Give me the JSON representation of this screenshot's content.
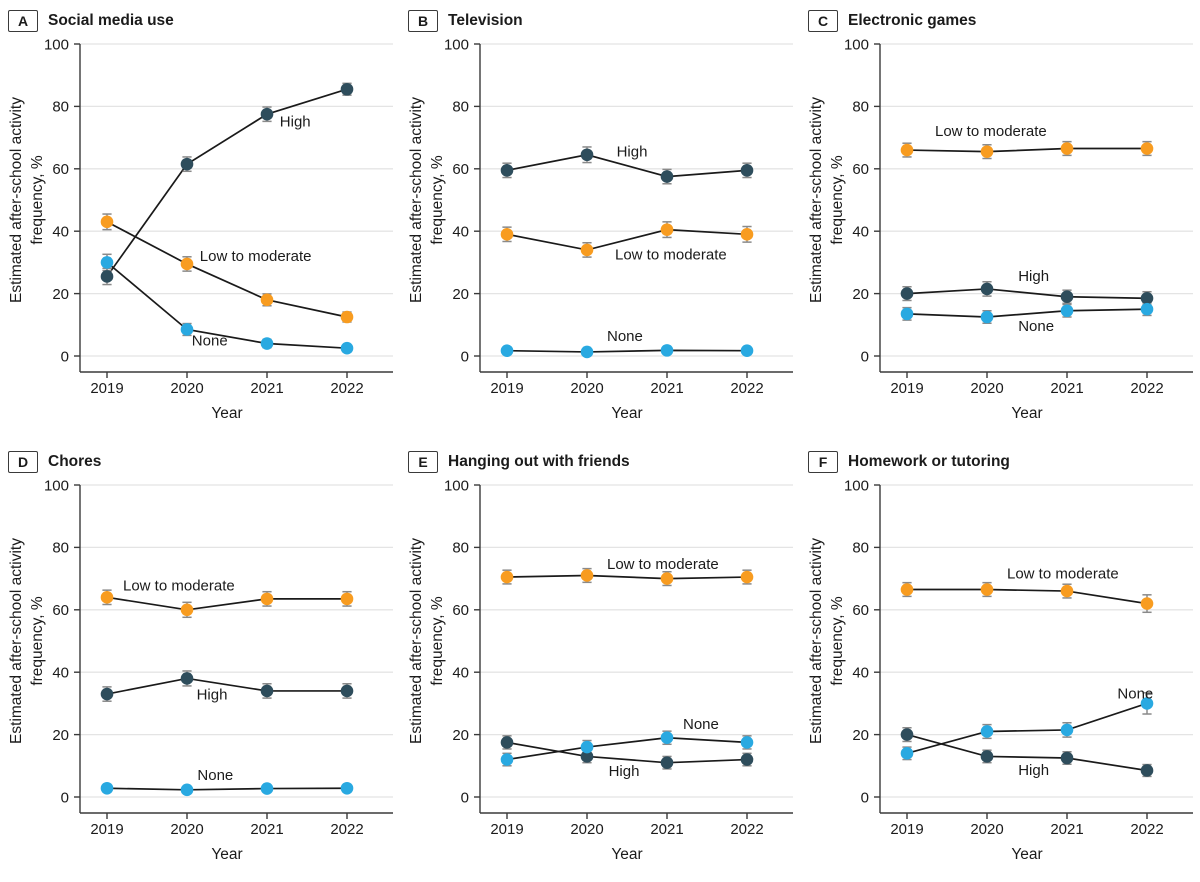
{
  "colors": {
    "high": "#2E4D5C",
    "low_to_moderate": "#F89C20",
    "none": "#29A9E1",
    "trend_line": "#1A1A1A",
    "error_bar": "#8A8A8A",
    "gridline": "#E4E4E4",
    "axis": "#3A3A3A",
    "text": "#1B1B1B"
  },
  "chart_data": [
    {
      "id": "A",
      "title": "Social media use",
      "type": "line",
      "x": [
        2019,
        2020,
        2021,
        2022
      ],
      "xlabel": "Year",
      "ylabel": "Estimated after-school activity frequency, %",
      "ylabel_lines": [
        "Estimated after-school activity",
        "frequency, %"
      ],
      "ylim": [
        0,
        100
      ],
      "yticks": [
        0,
        20,
        40,
        60,
        80,
        100
      ],
      "grid": true,
      "legend": "inline-labels",
      "series": [
        {
          "name": "High",
          "color_key": "high",
          "values": [
            25.5,
            61.5,
            77.5,
            85.5
          ],
          "errors": [
            2.6,
            2.3,
            2.3,
            1.9
          ],
          "label": {
            "x": 2.16,
            "y": 73.5
          }
        },
        {
          "name": "Low to moderate",
          "color_key": "low_to_moderate",
          "values": [
            43,
            29.5,
            18,
            12.5
          ],
          "errors": [
            2.5,
            2.3,
            1.9,
            1.6
          ],
          "label": {
            "x": 1.16,
            "y": 30.5
          }
        },
        {
          "name": "None",
          "color_key": "none",
          "values": [
            30,
            8.5,
            4,
            2.5
          ],
          "errors": [
            2.6,
            1.9,
            1.3,
            1.1
          ],
          "label": {
            "x": 1.06,
            "y": 3.4
          }
        }
      ]
    },
    {
      "id": "B",
      "title": "Television",
      "type": "line",
      "x": [
        2019,
        2020,
        2021,
        2022
      ],
      "xlabel": "Year",
      "ylabel": "Estimated after-school activity frequency, %",
      "ylabel_lines": [
        "Estimated after-school activity",
        "frequency, %"
      ],
      "ylim": [
        0,
        100
      ],
      "yticks": [
        0,
        20,
        40,
        60,
        80,
        100
      ],
      "grid": true,
      "legend": "inline-labels",
      "series": [
        {
          "name": "High",
          "color_key": "high",
          "values": [
            59.5,
            64.5,
            57.5,
            59.5
          ],
          "errors": [
            2.3,
            2.5,
            2.3,
            2.3
          ],
          "label": {
            "x": 1.37,
            "y": 64
          }
        },
        {
          "name": "Low to moderate",
          "color_key": "low_to_moderate",
          "values": [
            39,
            34,
            40.5,
            39
          ],
          "errors": [
            2.3,
            2.3,
            2.5,
            2.5
          ],
          "label": {
            "x": 1.35,
            "y": 31
          }
        },
        {
          "name": "None",
          "color_key": "none",
          "values": [
            1.7,
            1.3,
            1.8,
            1.7
          ],
          "errors": [
            0.8,
            0.7,
            0.8,
            0.8
          ],
          "label": {
            "x": 1.25,
            "y": 4.8
          }
        }
      ]
    },
    {
      "id": "C",
      "title": "Electronic games",
      "type": "line",
      "x": [
        2019,
        2020,
        2021,
        2022
      ],
      "xlabel": "Year",
      "ylabel": "Estimated after-school activity frequency, %",
      "ylabel_lines": [
        "Estimated after-school activity",
        "frequency, %"
      ],
      "ylim": [
        0,
        100
      ],
      "yticks": [
        0,
        20,
        40,
        60,
        80,
        100
      ],
      "grid": true,
      "legend": "inline-labels",
      "series": [
        {
          "name": "High",
          "color_key": "high",
          "values": [
            20,
            21.5,
            19,
            18.5
          ],
          "errors": [
            2.2,
            2.3,
            2.1,
            2.1
          ],
          "label": {
            "x": 1.39,
            "y": 24
          }
        },
        {
          "name": "Low to moderate",
          "color_key": "low_to_moderate",
          "values": [
            66,
            65.5,
            66.5,
            66.5
          ],
          "errors": [
            2.2,
            2.2,
            2.2,
            2.2
          ],
          "label": {
            "x": 0.35,
            "y": 70.5
          }
        },
        {
          "name": "None",
          "color_key": "none",
          "values": [
            13.5,
            12.5,
            14.5,
            15
          ],
          "errors": [
            2.0,
            2.0,
            2.0,
            2.0
          ],
          "label": {
            "x": 1.39,
            "y": 8
          }
        }
      ]
    },
    {
      "id": "D",
      "title": "Chores",
      "type": "line",
      "x": [
        2019,
        2020,
        2021,
        2022
      ],
      "xlabel": "Year",
      "ylabel": "Estimated after-school activity frequency, %",
      "ylabel_lines": [
        "Estimated after-school activity",
        "frequency, %"
      ],
      "ylim": [
        0,
        100
      ],
      "yticks": [
        0,
        20,
        40,
        60,
        80,
        100
      ],
      "grid": true,
      "legend": "inline-labels",
      "series": [
        {
          "name": "High",
          "color_key": "high",
          "values": [
            33,
            38,
            34,
            34
          ],
          "errors": [
            2.3,
            2.4,
            2.3,
            2.3
          ],
          "label": {
            "x": 1.12,
            "y": 31.3
          }
        },
        {
          "name": "Low to moderate",
          "color_key": "low_to_moderate",
          "values": [
            64,
            60,
            63.5,
            63.5
          ],
          "errors": [
            2.3,
            2.4,
            2.3,
            2.3
          ],
          "label": {
            "x": 0.2,
            "y": 66.2
          }
        },
        {
          "name": "None",
          "color_key": "none",
          "values": [
            2.8,
            2.3,
            2.7,
            2.8
          ],
          "errors": [
            0.8,
            0.7,
            0.8,
            0.8
          ],
          "label": {
            "x": 1.13,
            "y": 5.4
          }
        }
      ]
    },
    {
      "id": "E",
      "title": "Hanging out with friends",
      "type": "line",
      "x": [
        2019,
        2020,
        2021,
        2022
      ],
      "xlabel": "Year",
      "ylabel": "Estimated after-school activity frequency, %",
      "ylabel_lines": [
        "Estimated after-school activity",
        "frequency, %"
      ],
      "ylim": [
        0,
        100
      ],
      "yticks": [
        0,
        20,
        40,
        60,
        80,
        100
      ],
      "grid": true,
      "legend": "inline-labels",
      "series": [
        {
          "name": "High",
          "color_key": "high",
          "values": [
            17.5,
            13,
            11,
            12
          ],
          "errors": [
            2.1,
            2.0,
            2.0,
            2.0
          ],
          "label": {
            "x": 1.27,
            "y": 6.7
          }
        },
        {
          "name": "Low to moderate",
          "color_key": "low_to_moderate",
          "values": [
            70.5,
            71,
            70,
            70.5
          ],
          "errors": [
            2.2,
            2.2,
            2.2,
            2.2
          ],
          "label": {
            "x": 1.25,
            "y": 73
          }
        },
        {
          "name": "None",
          "color_key": "none",
          "values": [
            12,
            16,
            19,
            17.5
          ],
          "errors": [
            2.0,
            2.1,
            2.1,
            2.1
          ],
          "label": {
            "x": 2.2,
            "y": 21.8
          }
        }
      ]
    },
    {
      "id": "F",
      "title": "Homework or tutoring",
      "type": "line",
      "x": [
        2019,
        2020,
        2021,
        2022
      ],
      "xlabel": "Year",
      "ylabel": "Estimated after-school activity frequency, %",
      "ylabel_lines": [
        "Estimated after-school activity",
        "frequency, %"
      ],
      "ylim": [
        0,
        100
      ],
      "yticks": [
        0,
        20,
        40,
        60,
        80,
        100
      ],
      "grid": true,
      "legend": "inline-labels",
      "series": [
        {
          "name": "High",
          "color_key": "high",
          "values": [
            20,
            13,
            12.5,
            8.5
          ],
          "errors": [
            2.2,
            2.0,
            2.0,
            1.9
          ],
          "label": {
            "x": 1.39,
            "y": 7
          }
        },
        {
          "name": "Low to moderate",
          "color_key": "low_to_moderate",
          "values": [
            66.5,
            66.5,
            66,
            62
          ],
          "errors": [
            2.2,
            2.2,
            2.2,
            2.8
          ],
          "label": {
            "x": 1.25,
            "y": 70
          }
        },
        {
          "name": "None",
          "color_key": "none",
          "values": [
            14,
            21,
            21.5,
            30
          ],
          "errors": [
            2.0,
            2.2,
            2.3,
            3.4
          ],
          "label": {
            "x": 2.63,
            "y": 31.5
          }
        }
      ]
    }
  ]
}
